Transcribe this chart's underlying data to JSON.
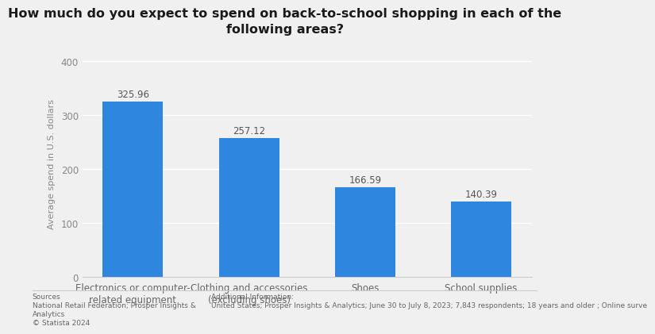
{
  "title": "How much do you expect to spend on back-to-school shopping in each of the\nfollowing areas?",
  "categories": [
    "Electronics or computer-\nrelated equipment",
    "Clothing and accessories\n(excluding shoes)",
    "Shoes",
    "School supplies"
  ],
  "values": [
    325.96,
    257.12,
    166.59,
    140.39
  ],
  "bar_color": "#2e86de",
  "ylabel": "Average spend in U.S. dollars",
  "ylim": [
    0,
    420
  ],
  "yticks": [
    0,
    100,
    200,
    300,
    400
  ],
  "background_color": "#f0f0f0",
  "plot_bg_color": "#f0f0f0",
  "title_fontsize": 11.5,
  "ylabel_fontsize": 8,
  "xtick_fontsize": 8.5,
  "ytick_fontsize": 8.5,
  "value_label_fontsize": 8.5,
  "footer_fontsize": 6.5,
  "sources_text": "Sources\nNational Retail Federation; Prosper Insights &\nAnalytics\n© Statista 2024",
  "additional_text": "Additional Information:\nUnited States; Prosper Insights & Analytics; June 30 to July 8, 2023; 7,843 respondents; 18 years and older ; Online surve"
}
